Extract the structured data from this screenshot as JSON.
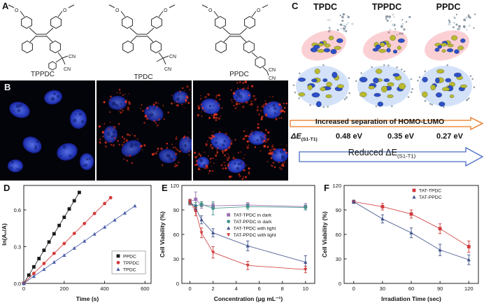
{
  "panels": {
    "a": {
      "label": "A",
      "atoms": {
        "o": "O",
        "cn": "CN"
      },
      "structures": [
        {
          "name": "TPPDC"
        },
        {
          "name": "TPDC"
        },
        {
          "name": "PPDC"
        }
      ]
    },
    "b": {
      "label": "B"
    },
    "c": {
      "label": "C",
      "columns": [
        "TPDC",
        "TPPDC",
        "PPDC"
      ],
      "homo_lumo_arrow_text": "Increased separation of HOMO-LUMO",
      "delta_e_prefix": "ΔE",
      "delta_e_sub": "(S1-T1)",
      "delta_e_values": [
        "0.48 eV",
        "0.35 eV",
        "0.27 eV"
      ],
      "reduced_arrow_prefix": "Reduced ΔE",
      "reduced_arrow_sub": "(S1-T1)"
    },
    "d": {
      "label": "D"
    },
    "e": {
      "label": "E"
    },
    "f": {
      "label": "F"
    }
  },
  "chart_data": [
    {
      "id": "D",
      "type": "scatter",
      "title": "",
      "xlabel": "Time (s)",
      "ylabel": "ln(A₀/A)",
      "xlim": [
        0,
        630
      ],
      "ylim": [
        0,
        0.8
      ],
      "xticks": [
        0,
        200,
        400,
        600
      ],
      "yticks": [
        0,
        0.3,
        0.6
      ],
      "ytick_labels": [
        "0.0",
        "0.3",
        "0.6"
      ],
      "mr": 10,
      "legend": {
        "fx": 0.72,
        "fy": 0.72,
        "frame": true,
        "w": 48
      },
      "series": [
        {
          "name": "PPDC",
          "color": "#1a1a1a",
          "marker": "square",
          "x": [
            0,
            25,
            50,
            75,
            100,
            125,
            150,
            175,
            200,
            225,
            250,
            275
          ],
          "y": [
            0.0,
            0.068,
            0.135,
            0.203,
            0.27,
            0.338,
            0.405,
            0.473,
            0.54,
            0.608,
            0.675,
            0.743
          ]
        },
        {
          "name": "TPPDC",
          "color": "#d03a3a",
          "marker": "circle",
          "x": [
            0,
            50,
            100,
            150,
            200,
            250,
            300,
            350,
            400,
            430
          ],
          "y": [
            0.0,
            0.082,
            0.163,
            0.245,
            0.326,
            0.408,
            0.489,
            0.571,
            0.652,
            0.7
          ]
        },
        {
          "name": "TPDC",
          "color": "#4b5ea8",
          "marker": "triangle",
          "x": [
            0,
            50,
            100,
            150,
            200,
            250,
            300,
            350,
            400,
            450,
            500,
            550
          ],
          "y": [
            0.0,
            0.058,
            0.115,
            0.173,
            0.23,
            0.288,
            0.345,
            0.403,
            0.46,
            0.518,
            0.575,
            0.633
          ]
        }
      ]
    },
    {
      "id": "E",
      "type": "line",
      "title": "",
      "xlabel": "Concentration (μg mL⁻¹)",
      "ylabel": "Cell Viability (%)",
      "xlim": [
        -0.7,
        10.8
      ],
      "ylim": [
        0,
        120
      ],
      "xticks": [
        0,
        2,
        4,
        6,
        8,
        10
      ],
      "yticks": [
        0,
        30,
        60,
        90,
        120
      ],
      "legend": {
        "fx": 0.33,
        "fy": 0.3,
        "frame": false
      },
      "x": [
        0,
        0.5,
        1,
        2,
        5,
        10
      ],
      "series": [
        {
          "name": "TAT-TPDC in dark",
          "color": "#9a6fb0",
          "marker": "square",
          "y": [
            100,
            103,
            96,
            95,
            96,
            94
          ],
          "err": [
            3,
            9,
            4,
            3,
            3,
            4
          ]
        },
        {
          "name": "TAT-PPDC in dark",
          "color": "#3f9488",
          "marker": "circle",
          "y": [
            99,
            95,
            97,
            92,
            94,
            93
          ],
          "err": [
            3,
            4,
            3,
            8,
            3,
            3
          ]
        },
        {
          "name": "TAT-TPDC with light",
          "color": "#41548c",
          "marker": "triangle",
          "y": [
            100,
            92,
            78,
            62,
            46,
            26
          ],
          "err": [
            3,
            4,
            5,
            5,
            6,
            8
          ]
        },
        {
          "name": "TAT-PPDC with light",
          "color": "#d03a3a",
          "marker": "triangle-down",
          "y": [
            100,
            88,
            62,
            38,
            22,
            17
          ],
          "err": [
            3,
            5,
            6,
            7,
            5,
            4
          ]
        }
      ]
    },
    {
      "id": "F",
      "type": "line",
      "title": "",
      "xlabel": "Irradiation Time (sec)",
      "ylabel": "Cell Viability (%)",
      "xlim": [
        -10,
        130
      ],
      "ylim": [
        0,
        120
      ],
      "xticks": [
        0,
        30,
        60,
        90,
        120
      ],
      "yticks": [
        0,
        30,
        60,
        90,
        120
      ],
      "legend": {
        "fx": 0.5,
        "fy": 0.05,
        "frame": false
      },
      "x": [
        0,
        30,
        60,
        90,
        120
      ],
      "series": [
        {
          "name": "TAT-TPDC",
          "color": "#d03a3a",
          "marker": "square",
          "y": [
            100,
            94,
            85,
            67,
            45
          ],
          "err": [
            2,
            4,
            5,
            6,
            7
          ]
        },
        {
          "name": "TAT-PPDC",
          "color": "#41548c",
          "marker": "triangle",
          "y": [
            100,
            79,
            62,
            41,
            29
          ],
          "err": [
            2,
            5,
            6,
            7,
            6
          ]
        }
      ]
    }
  ]
}
